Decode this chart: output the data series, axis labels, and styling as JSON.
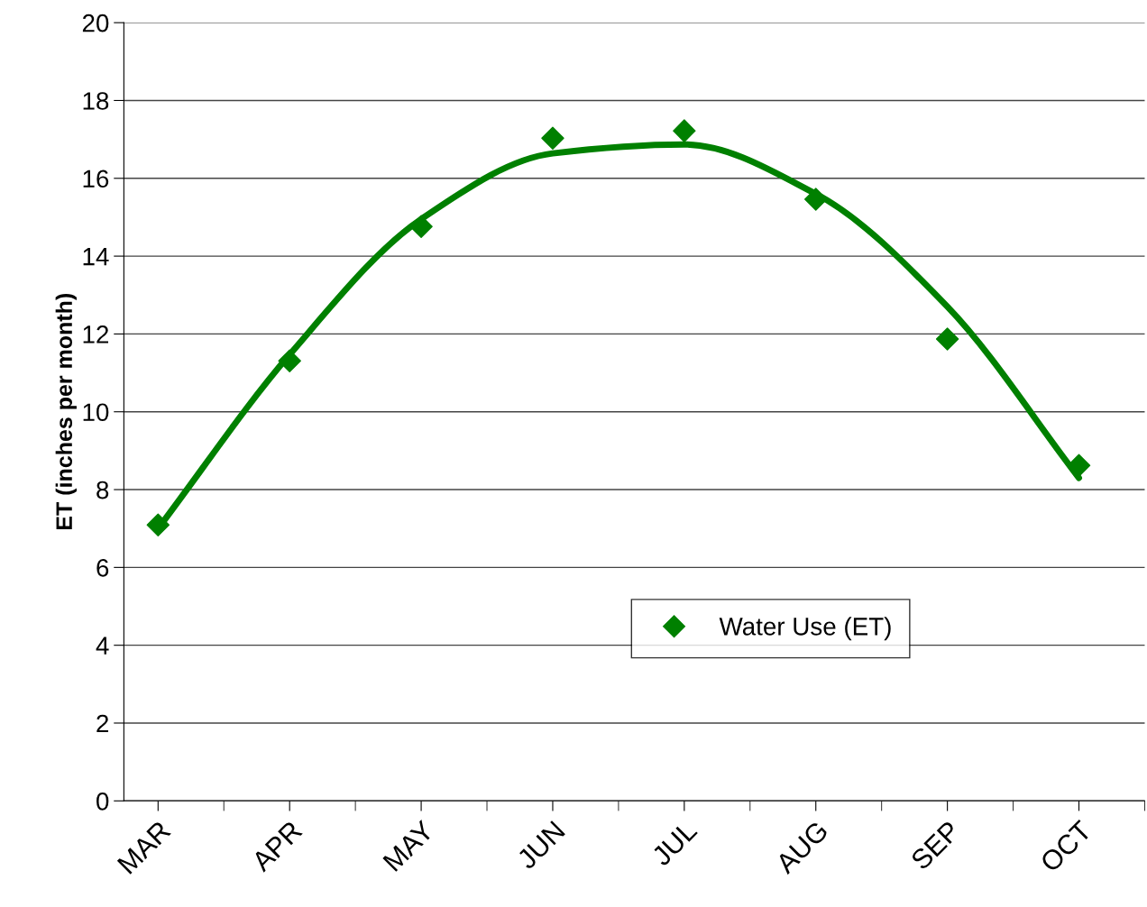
{
  "chart_data": {
    "type": "scatter",
    "ylabel": "ET (inches per month)",
    "categories": [
      "MAR",
      "APR",
      "MAY",
      "JUN",
      "JUL",
      "AUG",
      "SEP",
      "OCT"
    ],
    "series": [
      {
        "name": "Water Use (ET)",
        "color": "#008000",
        "marker": "diamond",
        "values": [
          7.09,
          11.31,
          14.76,
          17.03,
          17.22,
          15.46,
          11.87,
          8.62
        ]
      },
      {
        "type": "line",
        "color": "#008000",
        "line_style": "solid",
        "values": [
          7.0,
          11.47,
          14.95,
          16.64,
          16.87,
          15.6,
          12.7,
          8.3
        ]
      }
    ],
    "ylim": [
      0,
      20
    ],
    "yticks": [
      0,
      2,
      4,
      6,
      8,
      10,
      12,
      14,
      16,
      18,
      20
    ],
    "grid": "y",
    "legend": "bottom right"
  }
}
